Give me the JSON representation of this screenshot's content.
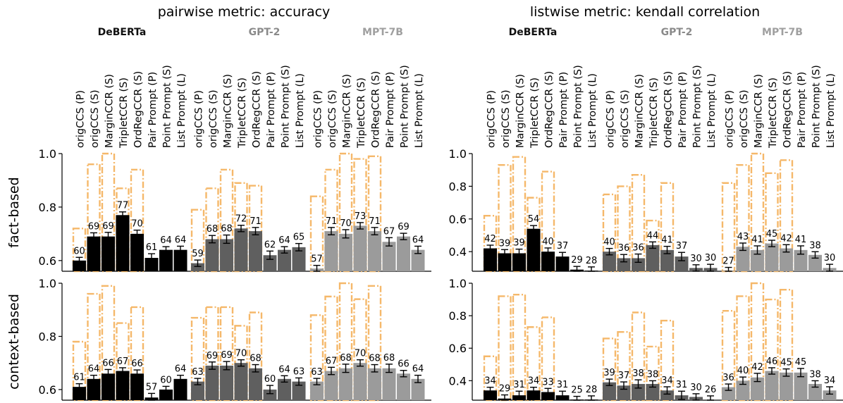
{
  "titles": {
    "pairwise": "pairwise metric: accuracy",
    "listwise": "listwise metric: kendall correlation"
  },
  "models": [
    {
      "name": "DeBERTa",
      "color": "#000000",
      "label_color": "#111111"
    },
    {
      "name": "GPT-2",
      "color": "#5f5f5f",
      "label_color": "#8a8a8a"
    },
    {
      "name": "MPT-7B",
      "color": "#9b9b9b",
      "label_color": "#9f9f9f"
    }
  ],
  "methods": [
    "origCCS (P)",
    "origCCS (S)",
    "MarginCCR (S)",
    "TripletCCR (S)",
    "OrdRegCCR (S)",
    "Pair Prompt (P)",
    "Point Prompt (S)",
    "List Prompt (L)"
  ],
  "row_labels": [
    "fact-based",
    "context-based"
  ],
  "colors": {
    "upper_bound_outline": "#f5b86a"
  },
  "chart_data": [
    {
      "type": "bar",
      "title": "pairwise metric: accuracy",
      "row": "fact-based",
      "ylim": [
        0.56,
        1.0
      ],
      "yticks": [
        0.6,
        0.8,
        1.0
      ],
      "series": [
        {
          "name": "DeBERTa",
          "values": [
            0.6,
            0.69,
            0.69,
            0.77,
            0.7,
            0.61,
            0.64,
            0.64
          ],
          "labels": [
            "60",
            "69",
            "69",
            "77",
            "70",
            "61",
            "64",
            "64"
          ],
          "upper": [
            0.72,
            0.96,
            1.0,
            0.87,
            0.94,
            null,
            null,
            null
          ]
        },
        {
          "name": "GPT-2",
          "values": [
            0.59,
            0.68,
            0.68,
            0.72,
            0.71,
            0.62,
            0.64,
            0.65
          ],
          "labels": [
            "59",
            "68",
            "68",
            "72",
            "71",
            "62",
            "64",
            "65"
          ],
          "upper": [
            0.79,
            0.87,
            0.94,
            0.89,
            0.88,
            null,
            null,
            null
          ]
        },
        {
          "name": "MPT-7B",
          "values": [
            0.57,
            0.71,
            0.7,
            0.73,
            0.71,
            0.67,
            0.69,
            0.64
          ],
          "labels": [
            "57",
            "71",
            "70",
            "73",
            "71",
            "67",
            "69",
            "64"
          ],
          "upper": [
            0.84,
            0.94,
            1.0,
            0.98,
            0.99,
            null,
            null,
            null
          ]
        }
      ]
    },
    {
      "type": "bar",
      "title": "listwise metric: kendall correlation",
      "row": "fact-based",
      "ylim": [
        0.28,
        1.0
      ],
      "yticks": [
        0.4,
        0.6,
        0.8,
        1.0
      ],
      "series": [
        {
          "name": "DeBERTa",
          "values": [
            0.42,
            0.39,
            0.39,
            0.54,
            0.4,
            0.37,
            0.29,
            0.28
          ],
          "labels": [
            "42",
            "39",
            "39",
            "54",
            "40",
            "37",
            "29",
            "28"
          ],
          "upper": [
            0.62,
            0.93,
            0.98,
            0.73,
            0.89,
            null,
            null,
            null
          ]
        },
        {
          "name": "GPT-2",
          "values": [
            0.4,
            0.36,
            0.36,
            0.44,
            0.41,
            0.37,
            0.3,
            0.3
          ],
          "labels": [
            "40",
            "36",
            "36",
            "44",
            "41",
            "37",
            "30",
            "30"
          ],
          "upper": [
            0.75,
            0.8,
            0.87,
            0.59,
            0.82,
            null,
            null,
            null
          ]
        },
        {
          "name": "MPT-7B",
          "values": [
            0.27,
            0.43,
            0.41,
            0.45,
            0.42,
            0.41,
            0.38,
            0.3
          ],
          "labels": [
            "27",
            "43",
            "41",
            "45",
            "42",
            "41",
            "38",
            "30"
          ],
          "upper": [
            0.82,
            0.93,
            1.0,
            0.88,
            0.96,
            null,
            null,
            null
          ]
        }
      ]
    },
    {
      "type": "bar",
      "title": "pairwise metric: accuracy",
      "row": "context-based",
      "ylim": [
        0.56,
        1.0
      ],
      "yticks": [
        0.6,
        0.8,
        1.0
      ],
      "series": [
        {
          "name": "DeBERTa",
          "values": [
            0.61,
            0.64,
            0.66,
            0.67,
            0.66,
            0.57,
            0.6,
            0.64
          ],
          "labels": [
            "61",
            "64",
            "66",
            "67",
            "66",
            "57",
            "60",
            "64"
          ],
          "upper": [
            0.78,
            0.96,
            0.99,
            0.85,
            0.91,
            null,
            null,
            null
          ]
        },
        {
          "name": "GPT-2",
          "values": [
            0.63,
            0.69,
            0.69,
            0.7,
            0.68,
            0.6,
            0.64,
            0.63
          ],
          "labels": [
            "63",
            "69",
            "69",
            "70",
            "68",
            "60",
            "64",
            "63"
          ],
          "upper": [
            0.87,
            0.91,
            0.91,
            0.84,
            0.89,
            null,
            null,
            null
          ]
        },
        {
          "name": "MPT-7B",
          "values": [
            0.63,
            0.67,
            0.68,
            0.7,
            0.68,
            0.68,
            0.66,
            0.64
          ],
          "labels": [
            "63",
            "67",
            "68",
            "70",
            "68",
            "68",
            "66",
            "64"
          ],
          "upper": [
            0.88,
            0.95,
            1.0,
            0.94,
            0.99,
            null,
            null,
            null
          ]
        }
      ]
    },
    {
      "type": "bar",
      "title": "listwise metric: kendall correlation",
      "row": "context-based",
      "ylim": [
        0.28,
        1.0
      ],
      "yticks": [
        0.4,
        0.6,
        0.8,
        1.0
      ],
      "series": [
        {
          "name": "DeBERTa",
          "values": [
            0.34,
            0.29,
            0.31,
            0.34,
            0.33,
            0.31,
            0.25,
            0.28
          ],
          "labels": [
            "34",
            "29",
            "31",
            "34",
            "33",
            "31",
            "25",
            "28"
          ],
          "upper": [
            0.55,
            0.92,
            0.93,
            0.73,
            0.79,
            null,
            null,
            null
          ]
        },
        {
          "name": "GPT-2",
          "values": [
            0.39,
            0.37,
            0.38,
            0.38,
            0.34,
            0.31,
            0.3,
            0.26
          ],
          "labels": [
            "39",
            "37",
            "38",
            "38",
            "34",
            "31",
            "30",
            "26"
          ],
          "upper": [
            0.66,
            0.7,
            0.82,
            0.61,
            0.77,
            null,
            null,
            null
          ]
        },
        {
          "name": "MPT-7B",
          "values": [
            0.36,
            0.4,
            0.42,
            0.46,
            0.45,
            0.45,
            0.38,
            0.34
          ],
          "labels": [
            "36",
            "40",
            "42",
            "46",
            "45",
            "45",
            "38",
            "34"
          ],
          "upper": [
            0.83,
            0.92,
            1.0,
            0.9,
            0.96,
            null,
            null,
            null
          ]
        }
      ]
    }
  ]
}
